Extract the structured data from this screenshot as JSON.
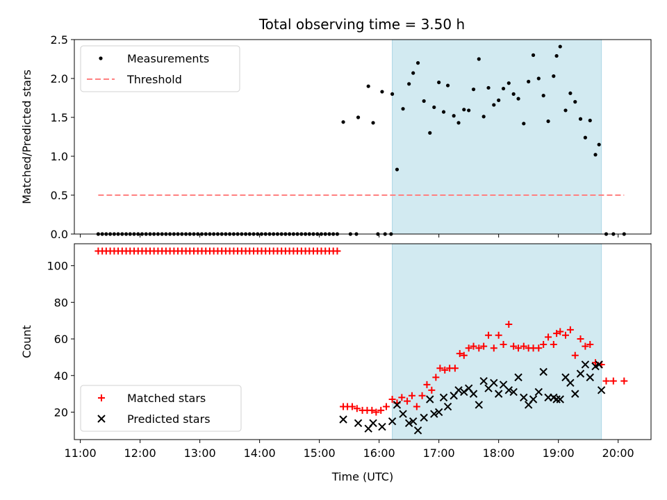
{
  "title": "Total observing time = 3.50 h",
  "colors": {
    "measurements": "#000000",
    "threshold": "#ff8080",
    "matched": "#ff0000",
    "predicted": "#000000",
    "shade": "#add8e6"
  },
  "chart_data": [
    {
      "type": "scatter",
      "panel": "top",
      "title": "Total observing time = 3.50 h",
      "xlabel": "",
      "ylabel": "Matched/Predicted stars",
      "x_unit": "hours (UTC)",
      "xlim": [
        10.9,
        20.55
      ],
      "ylim": [
        0,
        2.5
      ],
      "yticks": [
        0.0,
        0.5,
        1.0,
        1.5,
        2.0,
        2.5
      ],
      "ytick_labels": [
        "0.0",
        "0.5",
        "1.0",
        "1.5",
        "2.0",
        "2.5"
      ],
      "legend_position": "upper left",
      "grid": false,
      "shaded_span": [
        16.22,
        19.72
      ],
      "series": [
        {
          "name": "Measurements",
          "kind": "scatter",
          "marker": "dot",
          "x": [
            11.3,
            11.367,
            11.433,
            11.5,
            11.567,
            11.633,
            11.7,
            11.767,
            11.833,
            11.9,
            11.967,
            12.033,
            12.1,
            12.167,
            12.233,
            12.3,
            12.367,
            12.433,
            12.5,
            12.567,
            12.633,
            12.7,
            12.767,
            12.833,
            12.9,
            12.967,
            13.033,
            13.1,
            13.167,
            13.233,
            13.3,
            13.367,
            13.433,
            13.5,
            13.567,
            13.633,
            13.7,
            13.767,
            13.833,
            13.9,
            13.967,
            14.033,
            14.1,
            14.167,
            14.233,
            14.3,
            14.367,
            14.433,
            14.5,
            14.567,
            14.633,
            14.7,
            14.767,
            14.833,
            14.9,
            14.967,
            15.033,
            15.1,
            15.167,
            15.233,
            15.3,
            15.4,
            15.52,
            15.62,
            15.98,
            16.1,
            16.2,
            15.65,
            15.82,
            15.9,
            16.05,
            16.22,
            16.3,
            16.4,
            16.5,
            16.57,
            16.65,
            16.75,
            16.85,
            16.92,
            17.0,
            17.08,
            17.15,
            17.25,
            17.33,
            17.42,
            17.5,
            17.58,
            17.67,
            17.75,
            17.83,
            17.92,
            18.0,
            18.08,
            18.17,
            18.25,
            18.33,
            18.42,
            18.5,
            18.58,
            18.67,
            18.75,
            18.83,
            18.92,
            18.97,
            19.03,
            19.12,
            19.2,
            19.28,
            19.37,
            19.45,
            19.53,
            19.62,
            19.68,
            19.8,
            19.92,
            20.1
          ],
          "y": [
            0.0,
            0.0,
            0.0,
            0.0,
            0.0,
            0.0,
            0.0,
            0.0,
            0.0,
            0.0,
            0.0,
            0.0,
            0.0,
            0.0,
            0.0,
            0.0,
            0.0,
            0.0,
            0.0,
            0.0,
            0.0,
            0.0,
            0.0,
            0.0,
            0.0,
            0.0,
            0.0,
            0.0,
            0.0,
            0.0,
            0.0,
            0.0,
            0.0,
            0.0,
            0.0,
            0.0,
            0.0,
            0.0,
            0.0,
            0.0,
            0.0,
            0.0,
            0.0,
            0.0,
            0.0,
            0.0,
            0.0,
            0.0,
            0.0,
            0.0,
            0.0,
            0.0,
            0.0,
            0.0,
            0.0,
            0.0,
            0.0,
            0.0,
            0.0,
            0.0,
            0.0,
            1.44,
            0.0,
            0.0,
            0.0,
            0.0,
            0.0,
            1.5,
            1.9,
            1.43,
            1.83,
            1.8,
            0.83,
            1.61,
            1.93,
            2.07,
            2.2,
            1.71,
            1.3,
            1.63,
            1.95,
            1.57,
            1.91,
            1.52,
            1.43,
            1.6,
            1.59,
            1.86,
            2.25,
            1.51,
            1.88,
            1.66,
            1.72,
            1.87,
            1.94,
            1.8,
            1.74,
            1.42,
            1.96,
            2.3,
            2.0,
            1.78,
            1.45,
            2.03,
            2.29,
            2.41,
            1.59,
            1.81,
            1.7,
            1.48,
            1.24,
            1.46,
            1.02,
            1.15,
            0.0,
            0.0,
            0.0
          ]
        },
        {
          "name": "Threshold",
          "kind": "line",
          "style": "dashed",
          "x": [
            11.3,
            20.1
          ],
          "y": [
            0.5,
            0.5
          ]
        }
      ]
    },
    {
      "type": "scatter",
      "panel": "bottom",
      "xlabel": "Time (UTC)",
      "ylabel": "Count",
      "x_unit": "hours (UTC)",
      "xlim": [
        10.9,
        20.55
      ],
      "ylim": [
        5,
        112
      ],
      "xticks": [
        11,
        12,
        13,
        14,
        15,
        16,
        17,
        18,
        19,
        20
      ],
      "xtick_labels": [
        "11:00",
        "12:00",
        "13:00",
        "14:00",
        "15:00",
        "16:00",
        "17:00",
        "18:00",
        "19:00",
        "20:00"
      ],
      "yticks": [
        20,
        40,
        60,
        80,
        100
      ],
      "ytick_labels": [
        "20",
        "40",
        "60",
        "80",
        "100"
      ],
      "legend_position": "lower left",
      "grid": false,
      "shaded_span": [
        16.22,
        19.72
      ],
      "series": [
        {
          "name": "Matched stars",
          "kind": "scatter",
          "marker": "plus",
          "x": [
            11.3,
            11.367,
            11.433,
            11.5,
            11.567,
            11.633,
            11.7,
            11.767,
            11.833,
            11.9,
            11.967,
            12.033,
            12.1,
            12.167,
            12.233,
            12.3,
            12.367,
            12.433,
            12.5,
            12.567,
            12.633,
            12.7,
            12.767,
            12.833,
            12.9,
            12.967,
            13.033,
            13.1,
            13.167,
            13.233,
            13.3,
            13.367,
            13.433,
            13.5,
            13.567,
            13.633,
            13.7,
            13.767,
            13.833,
            13.9,
            13.967,
            14.033,
            14.1,
            14.167,
            14.233,
            14.3,
            14.367,
            14.433,
            14.5,
            14.567,
            14.633,
            14.7,
            14.767,
            14.833,
            14.9,
            14.967,
            15.033,
            15.1,
            15.167,
            15.233,
            15.3,
            15.4,
            15.47,
            15.55,
            15.63,
            15.72,
            15.8,
            15.88,
            15.95,
            16.03,
            16.12,
            16.22,
            16.3,
            16.38,
            16.47,
            16.55,
            16.63,
            16.72,
            16.8,
            16.88,
            16.95,
            17.02,
            17.1,
            17.18,
            17.27,
            17.35,
            17.42,
            17.5,
            17.58,
            17.67,
            17.75,
            17.83,
            17.92,
            18.0,
            18.08,
            18.17,
            18.25,
            18.33,
            18.42,
            18.5,
            18.58,
            18.67,
            18.75,
            18.83,
            18.92,
            18.97,
            19.03,
            19.12,
            19.2,
            19.28,
            19.37,
            19.45,
            19.53,
            19.62,
            19.72,
            19.8,
            19.92,
            20.1
          ],
          "y": [
            108,
            108,
            108,
            108,
            108,
            108,
            108,
            108,
            108,
            108,
            108,
            108,
            108,
            108,
            108,
            108,
            108,
            108,
            108,
            108,
            108,
            108,
            108,
            108,
            108,
            108,
            108,
            108,
            108,
            108,
            108,
            108,
            108,
            108,
            108,
            108,
            108,
            108,
            108,
            108,
            108,
            108,
            108,
            108,
            108,
            108,
            108,
            108,
            108,
            108,
            108,
            108,
            108,
            108,
            108,
            108,
            108,
            108,
            108,
            108,
            108,
            23,
            23,
            23,
            22,
            21,
            21,
            21,
            20,
            21,
            23,
            27,
            25,
            28,
            26,
            29,
            23,
            29,
            35,
            32,
            39,
            44,
            43,
            44,
            44,
            52,
            51,
            55,
            56,
            55,
            56,
            62,
            55,
            62,
            57,
            68,
            56,
            55,
            56,
            55,
            55,
            55,
            57,
            61,
            57,
            63,
            64,
            62,
            65,
            51,
            60,
            56,
            57,
            47,
            46,
            37,
            37,
            37
          ]
        },
        {
          "name": "Predicted stars",
          "kind": "scatter",
          "marker": "x",
          "x": [
            15.4,
            15.65,
            15.82,
            15.9,
            16.05,
            16.22,
            16.3,
            16.4,
            16.5,
            16.57,
            16.65,
            16.75,
            16.85,
            16.92,
            17.0,
            17.08,
            17.15,
            17.25,
            17.33,
            17.42,
            17.5,
            17.58,
            17.67,
            17.75,
            17.83,
            17.92,
            18.0,
            18.08,
            18.17,
            18.25,
            18.33,
            18.42,
            18.5,
            18.58,
            18.67,
            18.75,
            18.83,
            18.92,
            18.97,
            19.03,
            19.12,
            19.2,
            19.28,
            19.37,
            19.45,
            19.53,
            19.62,
            19.68,
            19.72
          ],
          "y": [
            16,
            14,
            11,
            14,
            12,
            15,
            24,
            19,
            14,
            15,
            10,
            17,
            27,
            19,
            20,
            28,
            23,
            29,
            32,
            31,
            33,
            30,
            24,
            37,
            33,
            36,
            30,
            35,
            32,
            31,
            39,
            28,
            24,
            27,
            31,
            42,
            28,
            28,
            27,
            27,
            39,
            36,
            30,
            41,
            46,
            39,
            45,
            46,
            32
          ]
        }
      ]
    }
  ]
}
